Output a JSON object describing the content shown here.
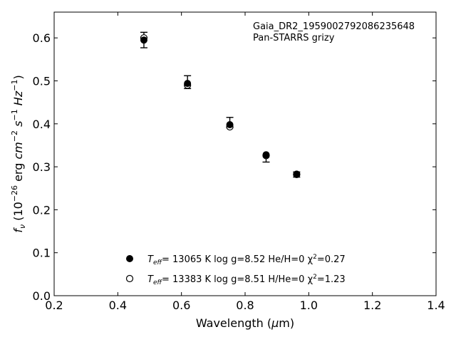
{
  "chart_data": {
    "type": "scatter",
    "title": "",
    "xlabel": "Wavelength (μm)",
    "ylabel": "fν (10⁻²⁶ erg cm⁻² s⁻¹ Hz⁻¹)",
    "xlim": [
      0.2,
      1.4
    ],
    "ylim": [
      0.0,
      0.66
    ],
    "xticks": [
      "0.2",
      "0.4",
      "0.6",
      "0.8",
      "1.0",
      "1.2",
      "1.4"
    ],
    "yticks": [
      "0.0",
      "0.1",
      "0.2",
      "0.3",
      "0.4",
      "0.5",
      "0.6"
    ],
    "grid": false,
    "legend_position": "lower-center",
    "annotations": [
      "Gaia_DR2_1959002792086235648",
      "Pan-STARRS grizy"
    ],
    "observed": {
      "x": [
        0.482,
        0.619,
        0.752,
        0.866,
        0.962
      ],
      "y": [
        0.595,
        0.497,
        0.403,
        0.319,
        0.282
      ],
      "yerr": [
        0.018,
        0.015,
        0.012,
        0.008,
        0.006
      ]
    },
    "series": [
      {
        "name": "Teff= 13065 K  log g=8.52  He/H=0  χ²=0.27",
        "marker": "filled",
        "x": [
          0.482,
          0.619,
          0.752,
          0.866,
          0.962
        ],
        "y": [
          0.595,
          0.494,
          0.398,
          0.328,
          0.283
        ]
      },
      {
        "name": "Teff= 13383 K  log g=8.51  H/He=0  χ²=1.23",
        "marker": "open",
        "x": [
          0.482,
          0.619,
          0.752,
          0.866,
          0.962
        ],
        "y": [
          0.6,
          0.49,
          0.393,
          0.326,
          0.282
        ]
      }
    ]
  },
  "legend": {
    "entries": [
      {
        "teff": "= 13065 K  log g=8.52  He/H=0  χ",
        "chi": "=0.27"
      },
      {
        "teff": "= 13383 K  log g=8.51  H/He=0  χ",
        "chi": "=1.23"
      }
    ]
  }
}
